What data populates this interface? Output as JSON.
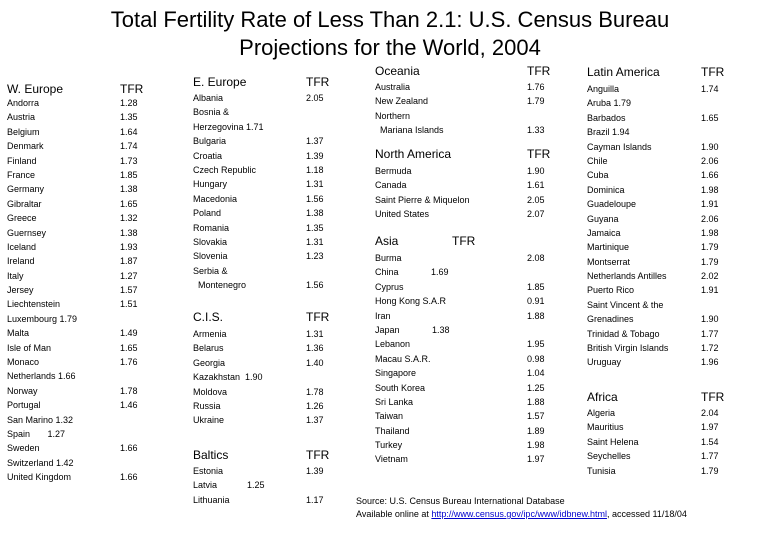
{
  "title_line1": "Total Fertility Rate of Less Than 2.1: U.S. Census Bureau",
  "title_line2": "Projections for the World, 2004",
  "sections": {
    "w_europe": {
      "header": "W. Europe",
      "tfr": "TFR",
      "rows": [
        {
          "name": "Andorra",
          "value": "1.28"
        },
        {
          "name": "Austria",
          "value": "1.35"
        },
        {
          "name": "Belgium",
          "value": "1.64"
        },
        {
          "name": "Denmark",
          "value": "1.74"
        },
        {
          "name": "Finland",
          "value": "1.73"
        },
        {
          "name": "France",
          "value": "1.85"
        },
        {
          "name": "Germany",
          "value": "1.38"
        },
        {
          "name": "Gibraltar",
          "value": "1.65"
        },
        {
          "name": "Greece",
          "value": "1.32"
        },
        {
          "name": "Guernsey",
          "value": "1.38"
        },
        {
          "name": "Iceland",
          "value": "1.93"
        },
        {
          "name": "Ireland",
          "value": "1.87"
        },
        {
          "name": "Italy",
          "value": "1.27"
        },
        {
          "name": "Jersey",
          "value": "1.57"
        },
        {
          "name": "Liechtenstein",
          "value": "1.51"
        },
        {
          "name": "Luxembourg 1.79",
          "value": ""
        },
        {
          "name": "Malta",
          "value": "1.49"
        },
        {
          "name": "Isle of Man",
          "value": "1.65"
        },
        {
          "name": "Monaco",
          "value": "1.76"
        },
        {
          "name": "Netherlands 1.66",
          "value": ""
        },
        {
          "name": "Norway",
          "value": "1.78"
        },
        {
          "name": "Portugal",
          "value": "1.46"
        },
        {
          "name": "San Marino 1.32",
          "value": ""
        },
        {
          "name": "Spain       1.27",
          "value": ""
        },
        {
          "name": "Sweden",
          "value": "1.66"
        },
        {
          "name": "Switzerland 1.42",
          "value": ""
        },
        {
          "name": "United Kingdom",
          "value": "1.66"
        }
      ]
    },
    "e_europe": {
      "header": "E. Europe",
      "tfr": "TFR",
      "rows": [
        {
          "name": "Albania",
          "value": "2.05"
        },
        {
          "name": "Bosnia &",
          "value": ""
        },
        {
          "name": "Herzegovina 1.71",
          "value": ""
        },
        {
          "name": "Bulgaria",
          "value": "1.37"
        },
        {
          "name": "Croatia",
          "value": "1.39"
        },
        {
          "name": "Czech Republic",
          "value": "1.18"
        },
        {
          "name": "Hungary",
          "value": "1.31"
        },
        {
          "name": "Macedonia",
          "value": "1.56"
        },
        {
          "name": "Poland",
          "value": "1.38"
        },
        {
          "name": "Romania",
          "value": "1.35"
        },
        {
          "name": "Slovakia",
          "value": "1.31"
        },
        {
          "name": "Slovenia",
          "value": "1.23"
        },
        {
          "name": "Serbia &",
          "value": ""
        },
        {
          "name": "  Montenegro",
          "value": "1.56"
        }
      ]
    },
    "cis": {
      "header": "C.I.S.",
      "tfr": "TFR",
      "rows": [
        {
          "name": "Armenia",
          "value": "1.31"
        },
        {
          "name": "Belarus",
          "value": "1.36"
        },
        {
          "name": "Georgia",
          "value": "1.40"
        },
        {
          "name": "Kazakhstan  1.90",
          "value": ""
        },
        {
          "name": "Moldova",
          "value": "1.78"
        },
        {
          "name": "Russia",
          "value": "1.26"
        },
        {
          "name": "Ukraine",
          "value": "1.37"
        }
      ]
    },
    "baltics": {
      "header": "Baltics",
      "tfr": "TFR",
      "rows": [
        {
          "name": "Estonia",
          "value": "1.39"
        },
        {
          "name": "Latvia            1.25",
          "value": ""
        },
        {
          "name": "Lithuania",
          "value": "1.17"
        }
      ]
    },
    "oceania": {
      "header": "Oceania",
      "tfr": "TFR",
      "rows": [
        {
          "name": "Australia",
          "value": "1.76"
        },
        {
          "name": "New Zealand",
          "value": "1.79"
        },
        {
          "name": "Northern",
          "value": ""
        },
        {
          "name": "  Mariana Islands",
          "value": "1.33"
        }
      ]
    },
    "north_america": {
      "header": "North America",
      "tfr": "TFR",
      "rows": [
        {
          "name": "Bermuda",
          "value": "1.90"
        },
        {
          "name": "Canada",
          "value": "1.61"
        },
        {
          "name": "Saint Pierre & Miquelon",
          "value": "2.05"
        },
        {
          "name": "United States",
          "value": "2.07"
        }
      ]
    },
    "asia": {
      "header": "Asia",
      "tfr": "TFR",
      "rows": [
        {
          "name": "Burma",
          "value": "2.08"
        },
        {
          "name": "China             1.69",
          "value": ""
        },
        {
          "name": "Cyprus",
          "value": "1.85"
        },
        {
          "name": "Hong Kong S.A.R",
          "value": "0.91"
        },
        {
          "name": "Iran",
          "value": "1.88"
        },
        {
          "name": "Japan             1.38",
          "value": ""
        },
        {
          "name": "Lebanon",
          "value": "1.95"
        },
        {
          "name": "Macau S.A.R.",
          "value": "0.98"
        },
        {
          "name": "Singapore",
          "value": "1.04"
        },
        {
          "name": "South Korea",
          "value": "1.25"
        },
        {
          "name": "Sri Lanka",
          "value": "1.88"
        },
        {
          "name": "Taiwan",
          "value": "1.57"
        },
        {
          "name": "Thailand",
          "value": "1.89"
        },
        {
          "name": "Turkey",
          "value": "1.98"
        },
        {
          "name": "Vietnam",
          "value": "1.97"
        }
      ]
    },
    "latin_america": {
      "header": "Latin America",
      "tfr": "TFR",
      "rows": [
        {
          "name": "Anguilla",
          "value": "1.74"
        },
        {
          "name": "Aruba 1.79",
          "value": ""
        },
        {
          "name": "Barbados",
          "value": "1.65"
        },
        {
          "name": "Brazil 1.94",
          "value": ""
        },
        {
          "name": "Cayman Islands",
          "value": "1.90"
        },
        {
          "name": "Chile",
          "value": "2.06"
        },
        {
          "name": "Cuba",
          "value": "1.66"
        },
        {
          "name": "Dominica",
          "value": "1.98"
        },
        {
          "name": "Guadeloupe",
          "value": "1.91"
        },
        {
          "name": "Guyana",
          "value": "2.06"
        },
        {
          "name": "Jamaica",
          "value": "1.98"
        },
        {
          "name": "Martinique",
          "value": "1.79"
        },
        {
          "name": "Montserrat",
          "value": "1.79"
        },
        {
          "name": "Netherlands Antilles",
          "value": "2.02"
        },
        {
          "name": "Puerto Rico",
          "value": "1.91"
        },
        {
          "name": "Saint Vincent & the",
          "value": ""
        },
        {
          "name": "Grenadines",
          "value": "1.90"
        },
        {
          "name": "Trinidad & Tobago",
          "value": "1.77"
        },
        {
          "name": "British Virgin Islands",
          "value": "1.72"
        },
        {
          "name": "Uruguay",
          "value": "1.96"
        }
      ]
    },
    "africa": {
      "header": "Africa",
      "tfr": "TFR",
      "rows": [
        {
          "name": "Algeria",
          "value": "2.04"
        },
        {
          "name": "Mauritius",
          "value": "1.97"
        },
        {
          "name": "Saint Helena",
          "value": "1.54"
        },
        {
          "name": "Seychelles",
          "value": "1.77"
        },
        {
          "name": "Tunisia",
          "value": "1.79"
        }
      ]
    }
  },
  "source": {
    "line1": "Source: U.S. Census Bureau International Database",
    "line2_prefix": "Available online at ",
    "link": "http://www.census.gov/ipc/www/idbnew.html",
    "line2_suffix": ", accessed 11/18/04"
  }
}
